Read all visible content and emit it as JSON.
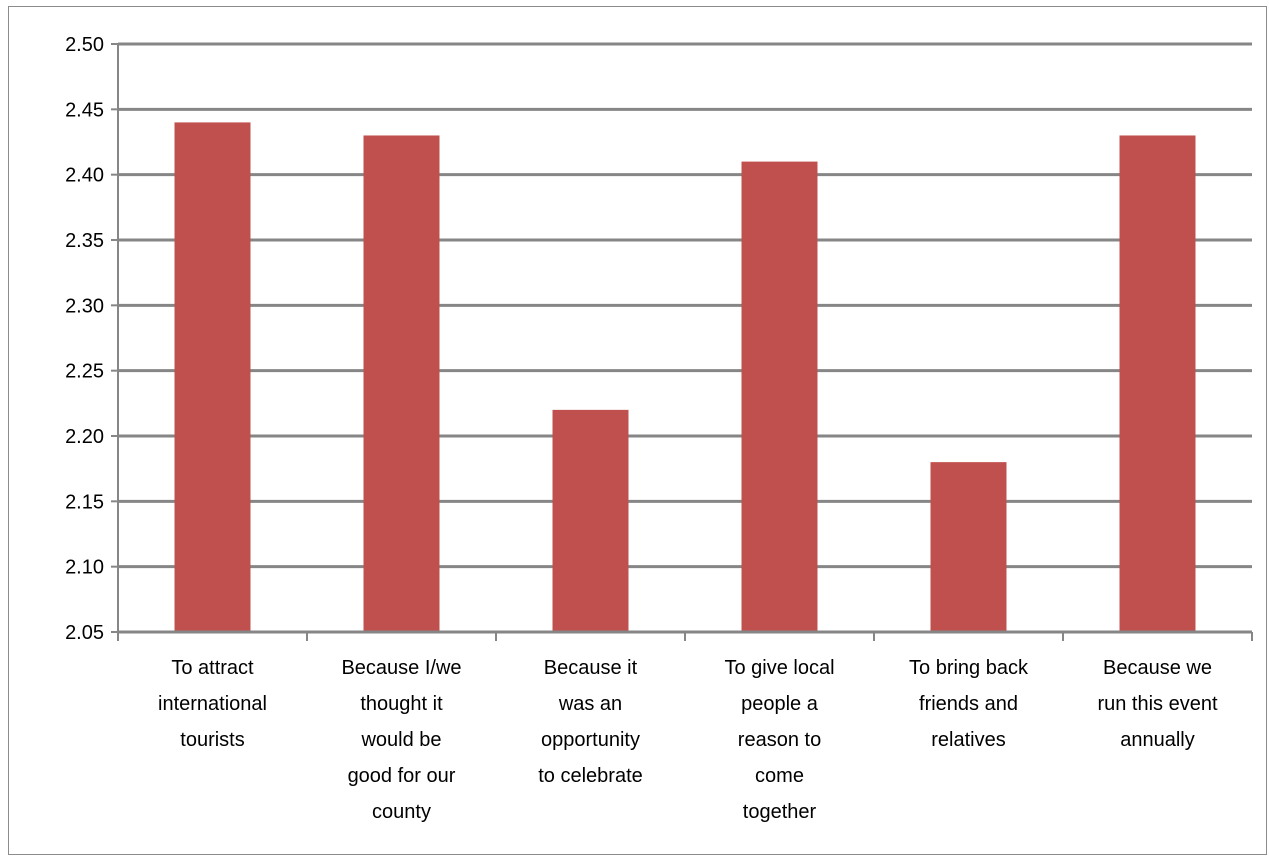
{
  "chart_data": {
    "type": "bar",
    "title": "",
    "xlabel": "",
    "ylabel": "",
    "ylim": [
      2.05,
      2.5
    ],
    "ytick_step": 0.05,
    "yticks": [
      "2.05",
      "2.10",
      "2.15",
      "2.20",
      "2.25",
      "2.30",
      "2.35",
      "2.40",
      "2.45",
      "2.50"
    ],
    "grid": true,
    "legend": "none",
    "bar_color": "#c0504d",
    "grid_color": "#868686",
    "categories": [
      [
        "To attract",
        "international",
        "tourists"
      ],
      [
        "Because I/we",
        "thought it",
        "would be",
        "good for our",
        "county"
      ],
      [
        "Because it",
        "was an",
        "opportunity",
        "to celebrate"
      ],
      [
        "To give local",
        "people a",
        "reason to",
        "come",
        "together"
      ],
      [
        "To bring back",
        "friends and",
        "relatives"
      ],
      [
        "Because we",
        "run this event",
        "annually"
      ]
    ],
    "values": [
      2.44,
      2.43,
      2.22,
      2.41,
      2.18,
      2.43
    ]
  }
}
